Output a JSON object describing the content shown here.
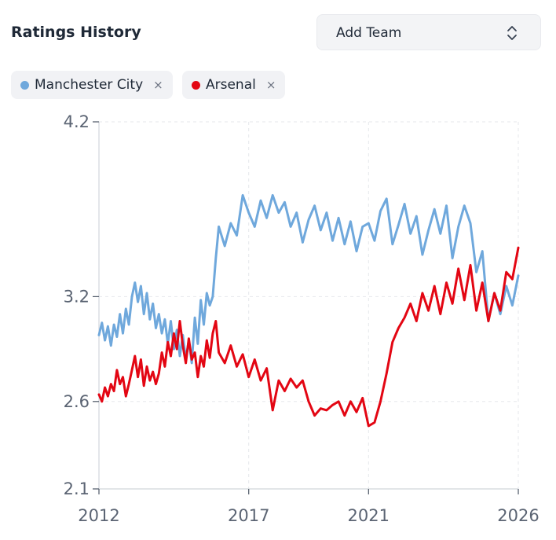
{
  "header": {
    "title": "Ratings History"
  },
  "add_team": {
    "label": "Add Team"
  },
  "chips": [
    {
      "label": "Manchester City",
      "color": "#6fa8dc"
    },
    {
      "label": "Arsenal",
      "color": "#e30613"
    }
  ],
  "chip_close_glyph": "×",
  "colors": {
    "grid": "#e5e7eb",
    "axis": "#d1d5db",
    "tick": "#5b6473"
  },
  "chart_data": {
    "type": "line",
    "title": "Ratings History",
    "xlabel": "",
    "ylabel": "",
    "xlim": [
      2012,
      2026
    ],
    "ylim": [
      2.1,
      4.2
    ],
    "x_ticks": [
      2012,
      2017,
      2021,
      2026
    ],
    "x_tick_labels": [
      "2012",
      "2017",
      "2021",
      "2026"
    ],
    "y_ticks": [
      4.2,
      3.2,
      2.6,
      2.1
    ],
    "y_tick_labels": [
      "4.2",
      "3.2",
      "2.6",
      "2.1"
    ],
    "grid": true,
    "series": [
      {
        "name": "Manchester City",
        "color": "#6fa8dc",
        "x": [
          2012,
          2012.1,
          2012.2,
          2012.3,
          2012.4,
          2012.5,
          2012.6,
          2012.7,
          2012.8,
          2012.9,
          2013,
          2013.1,
          2013.2,
          2013.3,
          2013.4,
          2013.5,
          2013.6,
          2013.7,
          2013.8,
          2013.9,
          2014,
          2014.1,
          2014.2,
          2014.3,
          2014.4,
          2014.5,
          2014.6,
          2014.7,
          2014.8,
          2014.9,
          2015,
          2015.1,
          2015.2,
          2015.3,
          2015.4,
          2015.5,
          2015.6,
          2015.7,
          2015.8,
          2015.9,
          2016,
          2016.2,
          2016.4,
          2016.6,
          2016.8,
          2017,
          2017.2,
          2017.4,
          2017.6,
          2017.8,
          2018,
          2018.2,
          2018.4,
          2018.6,
          2018.8,
          2019,
          2019.2,
          2019.4,
          2019.6,
          2019.8,
          2020,
          2020.2,
          2020.4,
          2020.6,
          2020.8,
          2021,
          2021.2,
          2021.4,
          2021.6,
          2021.8,
          2022,
          2022.2,
          2022.4,
          2022.6,
          2022.8,
          2023,
          2023.2,
          2023.4,
          2023.6,
          2023.8,
          2024,
          2024.2,
          2024.4,
          2024.6,
          2024.8,
          2025,
          2025.2,
          2025.4,
          2025.6,
          2025.8,
          2026
        ],
        "values": [
          2.98,
          3.05,
          2.95,
          3.03,
          2.92,
          3.04,
          2.97,
          3.1,
          2.99,
          3.13,
          3.04,
          3.2,
          3.28,
          3.17,
          3.26,
          3.1,
          3.22,
          3.07,
          3.16,
          3.02,
          3.1,
          2.99,
          3.07,
          2.93,
          3.06,
          2.9,
          3.01,
          2.86,
          2.98,
          2.84,
          2.95,
          2.82,
          3.08,
          2.93,
          3.18,
          3.04,
          3.22,
          3.15,
          3.2,
          3.42,
          3.6,
          3.49,
          3.62,
          3.55,
          3.78,
          3.68,
          3.6,
          3.75,
          3.65,
          3.78,
          3.68,
          3.74,
          3.6,
          3.68,
          3.51,
          3.64,
          3.72,
          3.58,
          3.68,
          3.52,
          3.65,
          3.5,
          3.63,
          3.46,
          3.6,
          3.62,
          3.52,
          3.69,
          3.76,
          3.5,
          3.61,
          3.73,
          3.56,
          3.66,
          3.44,
          3.58,
          3.7,
          3.56,
          3.72,
          3.42,
          3.6,
          3.72,
          3.62,
          3.34,
          3.46,
          3.06,
          3.22,
          3.1,
          3.26,
          3.15,
          3.32
        ]
      },
      {
        "name": "Arsenal",
        "color": "#e30613",
        "x": [
          2012,
          2012.1,
          2012.2,
          2012.3,
          2012.4,
          2012.5,
          2012.6,
          2012.7,
          2012.8,
          2012.9,
          2013,
          2013.1,
          2013.2,
          2013.3,
          2013.4,
          2013.5,
          2013.6,
          2013.7,
          2013.8,
          2013.9,
          2014,
          2014.1,
          2014.2,
          2014.3,
          2014.4,
          2014.5,
          2014.6,
          2014.7,
          2014.8,
          2014.9,
          2015,
          2015.1,
          2015.2,
          2015.3,
          2015.4,
          2015.5,
          2015.6,
          2015.7,
          2015.8,
          2015.9,
          2016,
          2016.2,
          2016.4,
          2016.6,
          2016.8,
          2017,
          2017.2,
          2017.4,
          2017.6,
          2017.8,
          2018,
          2018.2,
          2018.4,
          2018.6,
          2018.8,
          2019,
          2019.2,
          2019.4,
          2019.6,
          2019.8,
          2020,
          2020.2,
          2020.4,
          2020.6,
          2020.8,
          2021,
          2021.2,
          2021.4,
          2021.6,
          2021.8,
          2022,
          2022.2,
          2022.4,
          2022.6,
          2022.8,
          2023,
          2023.2,
          2023.4,
          2023.6,
          2023.8,
          2024,
          2024.2,
          2024.4,
          2024.6,
          2024.8,
          2025,
          2025.2,
          2025.4,
          2025.6,
          2025.8,
          2026
        ],
        "values": [
          2.64,
          2.6,
          2.68,
          2.63,
          2.7,
          2.66,
          2.78,
          2.7,
          2.74,
          2.63,
          2.7,
          2.78,
          2.86,
          2.74,
          2.84,
          2.69,
          2.8,
          2.72,
          2.77,
          2.7,
          2.76,
          2.88,
          2.8,
          2.94,
          2.86,
          2.99,
          2.9,
          3.06,
          2.92,
          2.82,
          2.96,
          2.84,
          2.88,
          2.74,
          2.86,
          2.8,
          2.95,
          2.85,
          2.99,
          3.06,
          2.88,
          2.82,
          2.92,
          2.8,
          2.87,
          2.74,
          2.84,
          2.72,
          2.79,
          2.55,
          2.72,
          2.66,
          2.73,
          2.68,
          2.72,
          2.6,
          2.52,
          2.56,
          2.55,
          2.58,
          2.6,
          2.52,
          2.6,
          2.54,
          2.62,
          2.46,
          2.48,
          2.6,
          2.76,
          2.94,
          3.02,
          3.08,
          3.16,
          3.06,
          3.22,
          3.12,
          3.26,
          3.1,
          3.28,
          3.16,
          3.36,
          3.18,
          3.38,
          3.12,
          3.28,
          3.06,
          3.22,
          3.12,
          3.34,
          3.3,
          3.48
        ]
      }
    ]
  }
}
